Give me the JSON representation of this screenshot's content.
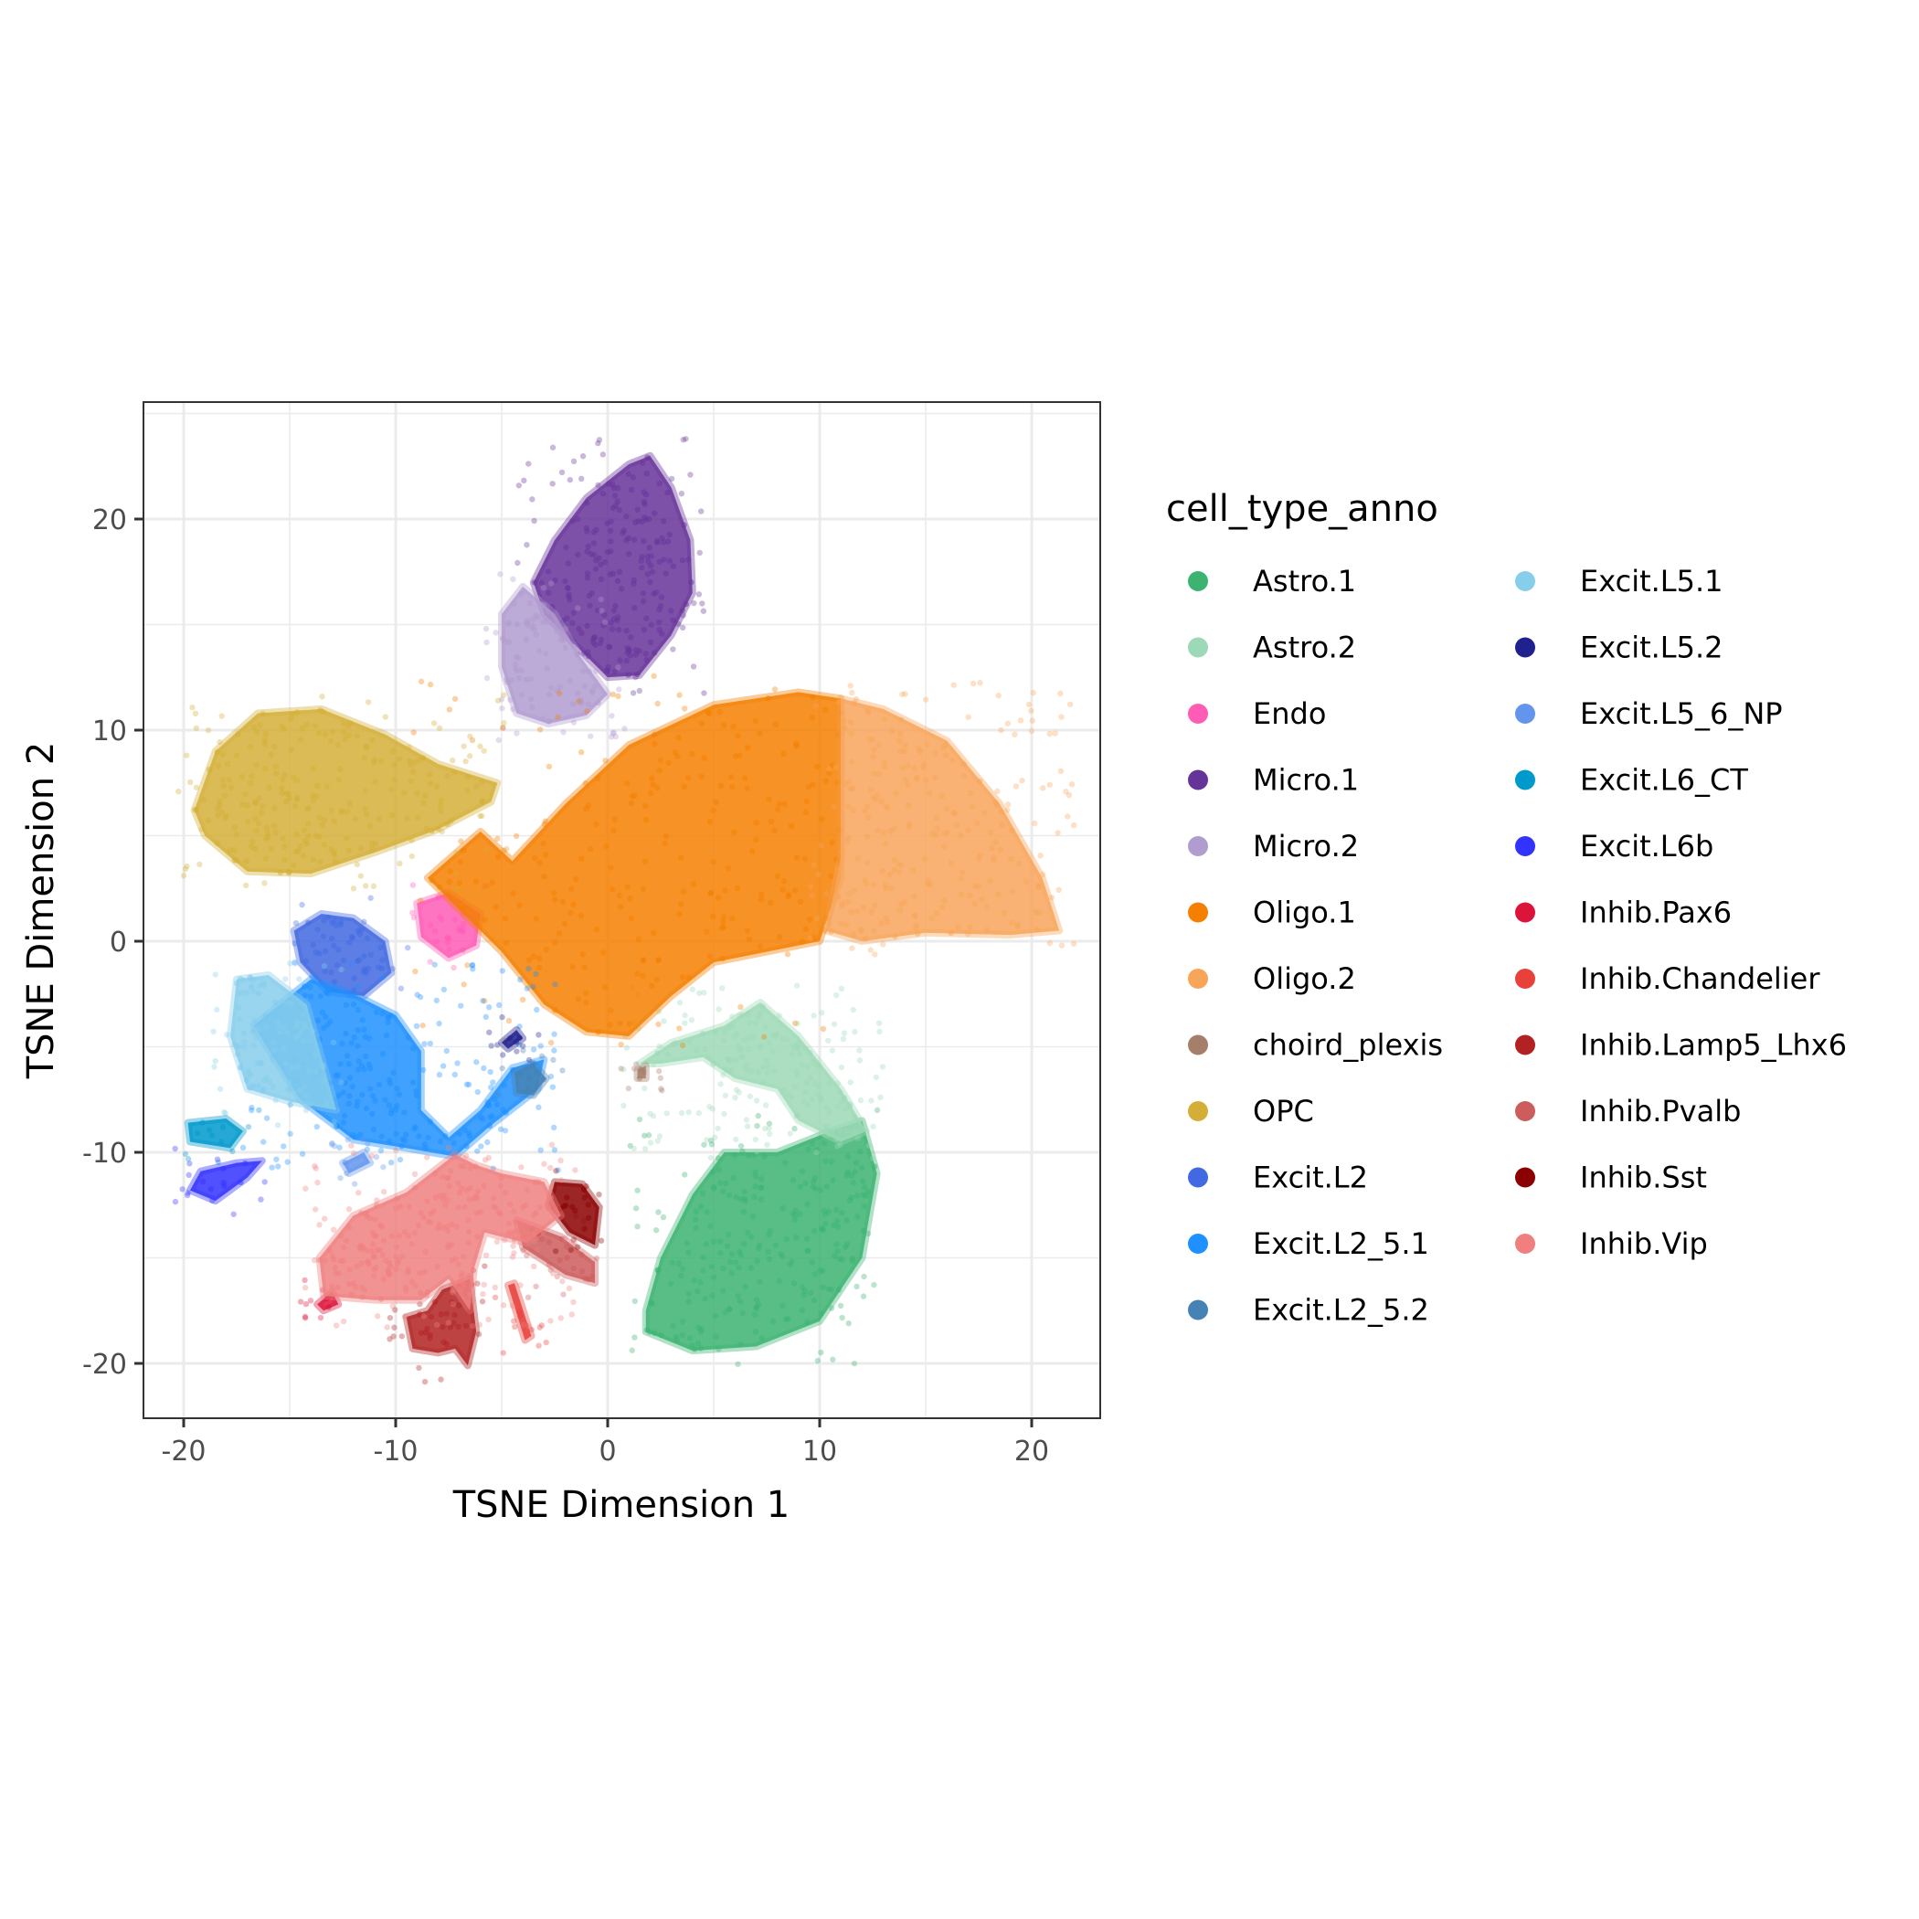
{
  "chart_data": {
    "type": "scatter",
    "title": "",
    "xlabel": "TSNE Dimension 1",
    "ylabel": "TSNE Dimension 2",
    "xlim": [
      -22,
      23
    ],
    "ylim": [
      -22.5,
      25.5
    ],
    "x_ticks": [
      -20,
      -10,
      0,
      10,
      20
    ],
    "y_ticks": [
      -20,
      -10,
      0,
      10,
      20
    ],
    "x_tick_labels": [
      "-20",
      "-10",
      "0",
      "10",
      "20"
    ],
    "y_tick_labels": [
      "-20",
      "-10",
      "0",
      "10",
      "20"
    ],
    "grid": true,
    "theme": "bw",
    "point_alpha": 0.35,
    "legend": {
      "title": "cell_type_anno",
      "placement": "right",
      "columns": 2
    },
    "series": [
      {
        "name": "Astro.1",
        "color": "#3CB371",
        "region": [
          [
            1.8,
            -18.5
          ],
          [
            4,
            -19.4
          ],
          [
            7,
            -19.2
          ],
          [
            10,
            -18
          ],
          [
            12,
            -15
          ],
          [
            12.7,
            -11
          ],
          [
            12,
            -8.5
          ],
          [
            10.5,
            -9
          ],
          [
            8,
            -10
          ],
          [
            5.5,
            -10
          ],
          [
            4,
            -12
          ],
          [
            2.5,
            -15
          ],
          [
            1.8,
            -17.5
          ]
        ]
      },
      {
        "name": "Astro.2",
        "color": "#9DD9B7",
        "region": [
          [
            1.5,
            -5.8
          ],
          [
            3,
            -4.8
          ],
          [
            5.5,
            -4
          ],
          [
            7.2,
            -2.9
          ],
          [
            9,
            -4.5
          ],
          [
            11,
            -7
          ],
          [
            12.2,
            -9
          ],
          [
            11,
            -9.5
          ],
          [
            9,
            -8.5
          ],
          [
            8,
            -7
          ],
          [
            6,
            -6.5
          ],
          [
            4.5,
            -5.5
          ],
          [
            2.5,
            -5.8
          ]
        ]
      },
      {
        "name": "Endo",
        "color": "#FF5CB5",
        "region": [
          [
            -9,
            1.8
          ],
          [
            -7.5,
            2.3
          ],
          [
            -6,
            1.3
          ],
          [
            -6.2,
            -0.2
          ],
          [
            -7.5,
            -0.8
          ],
          [
            -8.8,
            0.2
          ]
        ]
      },
      {
        "name": "Micro.1",
        "color": "#663399",
        "region": [
          [
            -3.5,
            17
          ],
          [
            -2.5,
            19
          ],
          [
            -1,
            21
          ],
          [
            1,
            22.6
          ],
          [
            2,
            23
          ],
          [
            3,
            21.5
          ],
          [
            3.9,
            19
          ],
          [
            4,
            16.5
          ],
          [
            3,
            14.5
          ],
          [
            1.5,
            12.6
          ],
          [
            0,
            12.5
          ],
          [
            -1.5,
            14
          ],
          [
            -3,
            15.5
          ]
        ]
      },
      {
        "name": "Micro.2",
        "color": "#B19CD0",
        "region": [
          [
            -5,
            15.5
          ],
          [
            -4,
            16.8
          ],
          [
            -2.5,
            15.5
          ],
          [
            -1.3,
            13.5
          ],
          [
            0,
            11.7
          ],
          [
            -1,
            10.7
          ],
          [
            -2.8,
            10.3
          ],
          [
            -4.3,
            10.8
          ],
          [
            -5,
            13
          ]
        ]
      },
      {
        "name": "Oligo.1",
        "color": "#F47F00",
        "region": [
          [
            -8.5,
            3
          ],
          [
            -6,
            5.2
          ],
          [
            -4.5,
            3.8
          ],
          [
            -2,
            6.5
          ],
          [
            1,
            9.3
          ],
          [
            5,
            11.2
          ],
          [
            9,
            11.8
          ],
          [
            11,
            11.5
          ],
          [
            11,
            7
          ],
          [
            11,
            3
          ],
          [
            10,
            0
          ],
          [
            5,
            -1
          ],
          [
            3,
            -2.6
          ],
          [
            1,
            -4.5
          ],
          [
            -1,
            -4.3
          ],
          [
            -3,
            -3
          ],
          [
            -5,
            -0.5
          ],
          [
            -7,
            1.5
          ]
        ]
      },
      {
        "name": "Oligo.2",
        "color": "#F8A55A",
        "region": [
          [
            11,
            11.5
          ],
          [
            13,
            11
          ],
          [
            16,
            9.5
          ],
          [
            18.5,
            6.5
          ],
          [
            20.5,
            3
          ],
          [
            21.3,
            0.5
          ],
          [
            19,
            0.3
          ],
          [
            15,
            0.4
          ],
          [
            12,
            0
          ],
          [
            10.3,
            0.5
          ],
          [
            11,
            4
          ],
          [
            11,
            8
          ]
        ]
      },
      {
        "name": "choird_plexis",
        "color": "#A67F6B",
        "region": [
          [
            1.4,
            -6.1
          ],
          [
            1.8,
            -5.9
          ],
          [
            1.8,
            -6.5
          ],
          [
            1.4,
            -6.5
          ]
        ]
      },
      {
        "name": "OPC",
        "color": "#D4AF37",
        "region": [
          [
            -19.5,
            6.2
          ],
          [
            -18.5,
            9
          ],
          [
            -16.5,
            10.8
          ],
          [
            -13.5,
            11
          ],
          [
            -10.5,
            9.8
          ],
          [
            -8,
            8.4
          ],
          [
            -5.2,
            7.5
          ],
          [
            -5.5,
            6.6
          ],
          [
            -8,
            5.3
          ],
          [
            -11,
            4.2
          ],
          [
            -14,
            3.2
          ],
          [
            -17,
            3.3
          ],
          [
            -19,
            5
          ]
        ]
      },
      {
        "name": "Excit.L2",
        "color": "#4169E1",
        "region": [
          [
            -14.8,
            0.5
          ],
          [
            -13.5,
            1.3
          ],
          [
            -12,
            1.1
          ],
          [
            -10.5,
            0
          ],
          [
            -10.2,
            -1.5
          ],
          [
            -11.5,
            -2.6
          ],
          [
            -13.2,
            -2.4
          ],
          [
            -14.5,
            -1
          ]
        ]
      },
      {
        "name": "Excit.L2_5.1",
        "color": "#1E90FF",
        "region": [
          [
            -16.7,
            -4
          ],
          [
            -14,
            -1.8
          ],
          [
            -12,
            -2.5
          ],
          [
            -10,
            -3.5
          ],
          [
            -8.8,
            -5.2
          ],
          [
            -8.8,
            -8
          ],
          [
            -7.5,
            -9.3
          ],
          [
            -6,
            -8
          ],
          [
            -4.5,
            -6
          ],
          [
            -3,
            -5.6
          ],
          [
            -3.3,
            -7
          ],
          [
            -5.6,
            -8.8
          ],
          [
            -7.2,
            -10.2
          ],
          [
            -9.5,
            -9.8
          ],
          [
            -12,
            -9.4
          ],
          [
            -14.5,
            -7.5
          ]
        ]
      },
      {
        "name": "Excit.L2_5.2",
        "color": "#4682B4",
        "region": [
          [
            -4.4,
            -6.2
          ],
          [
            -3.5,
            -5.8
          ],
          [
            -2.9,
            -6.5
          ],
          [
            -3.5,
            -7.3
          ],
          [
            -4.3,
            -7.2
          ]
        ]
      },
      {
        "name": "Excit.L5.1",
        "color": "#87CEEB",
        "region": [
          [
            -17.5,
            -1.8
          ],
          [
            -16,
            -1.6
          ],
          [
            -14.2,
            -3
          ],
          [
            -13.5,
            -5.5
          ],
          [
            -12.8,
            -8
          ],
          [
            -15,
            -7.6
          ],
          [
            -17,
            -7
          ],
          [
            -17.8,
            -4.5
          ]
        ]
      },
      {
        "name": "Excit.L5.2",
        "color": "#1F218F",
        "region": [
          [
            -5,
            -4.8
          ],
          [
            -4.3,
            -4.2
          ],
          [
            -4,
            -4.6
          ],
          [
            -4.7,
            -5.1
          ]
        ]
      },
      {
        "name": "Excit.L5_6_NP",
        "color": "#6495ED",
        "region": [
          [
            -12.5,
            -10.5
          ],
          [
            -11.5,
            -10
          ],
          [
            -11.2,
            -10.5
          ],
          [
            -12.2,
            -11
          ]
        ]
      },
      {
        "name": "Excit.L6_CT",
        "color": "#0099CC",
        "region": [
          [
            -19.8,
            -8.6
          ],
          [
            -18,
            -8.4
          ],
          [
            -17.2,
            -9
          ],
          [
            -17.8,
            -9.8
          ],
          [
            -19.7,
            -9.5
          ]
        ]
      },
      {
        "name": "Excit.L6b",
        "color": "#3333FF",
        "region": [
          [
            -19.7,
            -11.8
          ],
          [
            -18.5,
            -12.3
          ],
          [
            -17,
            -11.2
          ],
          [
            -16.3,
            -10.4
          ],
          [
            -17.5,
            -10.5
          ],
          [
            -19.2,
            -10.9
          ]
        ]
      },
      {
        "name": "Inhib.Pax6",
        "color": "#DC143C",
        "region": [
          [
            -13.7,
            -17.2
          ],
          [
            -13,
            -16.6
          ],
          [
            -12.7,
            -17.2
          ],
          [
            -13.4,
            -17.5
          ]
        ]
      },
      {
        "name": "Inhib.Chandelier",
        "color": "#E8413C",
        "region": [
          [
            -4.7,
            -16.3
          ],
          [
            -4.4,
            -16.2
          ],
          [
            -3.6,
            -18.7
          ],
          [
            -3.9,
            -18.9
          ]
        ]
      },
      {
        "name": "Inhib.Lamp5_Lhx6",
        "color": "#B22222",
        "region": [
          [
            -9.5,
            -17.8
          ],
          [
            -8.5,
            -17.5
          ],
          [
            -7.8,
            -16.5
          ],
          [
            -6.5,
            -16
          ],
          [
            -6.2,
            -18.5
          ],
          [
            -6.6,
            -20.1
          ],
          [
            -7.2,
            -19.3
          ],
          [
            -8,
            -19.5
          ],
          [
            -9.2,
            -19.3
          ]
        ]
      },
      {
        "name": "Inhib.Pvalb",
        "color": "#CD5C5C",
        "region": [
          [
            -4.3,
            -13.2
          ],
          [
            -2.2,
            -14
          ],
          [
            -0.6,
            -15.2
          ],
          [
            -0.6,
            -16.2
          ],
          [
            -2,
            -15.8
          ],
          [
            -4,
            -14.5
          ]
        ]
      },
      {
        "name": "Inhib.Sst",
        "color": "#8B0000",
        "region": [
          [
            -2.5,
            -11.4
          ],
          [
            -1.2,
            -11.5
          ],
          [
            -0.4,
            -12.6
          ],
          [
            -0.6,
            -14.4
          ],
          [
            -1.8,
            -13.8
          ],
          [
            -2.8,
            -12.5
          ]
        ]
      },
      {
        "name": "Inhib.Vip",
        "color": "#F08080",
        "region": [
          [
            -13.6,
            -15
          ],
          [
            -12,
            -13
          ],
          [
            -9.5,
            -11.9
          ],
          [
            -7.2,
            -10.1
          ],
          [
            -6.2,
            -10.6
          ],
          [
            -5,
            -11
          ],
          [
            -3,
            -11.4
          ],
          [
            -2.2,
            -13
          ],
          [
            -3.8,
            -14.3
          ],
          [
            -5.8,
            -13.8
          ],
          [
            -6.3,
            -15.5
          ],
          [
            -6.5,
            -17.5
          ],
          [
            -7.5,
            -16
          ],
          [
            -8.8,
            -17
          ],
          [
            -11,
            -17
          ],
          [
            -13.4,
            -16.8
          ]
        ]
      }
    ]
  }
}
